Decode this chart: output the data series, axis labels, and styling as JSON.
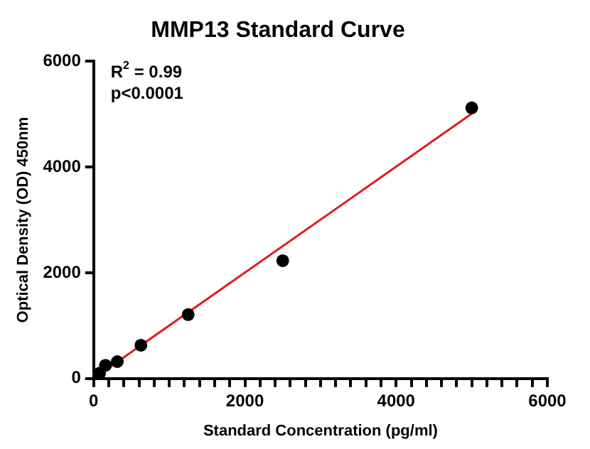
{
  "chart_data": {
    "type": "scatter",
    "title": "MMP13 Standard Curve",
    "xlabel": "Standard Concentration (pg/ml)",
    "ylabel": "Optical Density (OD) 450nm",
    "xlim": [
      0,
      6000
    ],
    "ylim": [
      0,
      6000
    ],
    "xticks": [
      0,
      {
        "value": 200,
        "label": null
      },
      {
        "value": 400,
        "label": null
      },
      {
        "value": 600,
        "label": null
      },
      {
        "value": 800,
        "label": null
      },
      {
        "value": 1000,
        "label": null
      },
      {
        "value": 1200,
        "label": null
      },
      {
        "value": 1400,
        "label": null
      },
      {
        "value": 1600,
        "label": null
      },
      {
        "value": 1800,
        "label": null
      },
      2000,
      {
        "value": 2200,
        "label": null
      },
      {
        "value": 2400,
        "label": null
      },
      {
        "value": 2600,
        "label": null
      },
      {
        "value": 2800,
        "label": null
      },
      {
        "value": 3000,
        "label": null
      },
      {
        "value": 3200,
        "label": null
      },
      {
        "value": 3400,
        "label": null
      },
      {
        "value": 3600,
        "label": null
      },
      {
        "value": 3800,
        "label": null
      },
      4000,
      {
        "value": 4200,
        "label": null
      },
      {
        "value": 4400,
        "label": null
      },
      {
        "value": 4600,
        "label": null
      },
      {
        "value": 4800,
        "label": null
      },
      {
        "value": 5000,
        "label": null
      },
      {
        "value": 5200,
        "label": null
      },
      {
        "value": 5400,
        "label": null
      },
      {
        "value": 5600,
        "label": null
      },
      {
        "value": 5800,
        "label": null
      },
      6000
    ],
    "yticks": [
      0,
      2000,
      4000,
      6000
    ],
    "grid": false,
    "legend": false,
    "marker": "circle",
    "annotations": [
      "R$^{2}$ = 0.99",
      "p<0.0001"
    ],
    "series": [
      {
        "type": "line",
        "color": "#e31a1c",
        "x": [
          39,
          5000
        ],
        "values": [
          40,
          5010
        ],
        "marker": "none"
      },
      {
        "color": "#000000",
        "x": [
          78,
          156,
          312.5,
          625,
          1250,
          2500,
          5000
        ],
        "values": [
          100,
          250,
          320,
          630,
          1210,
          2230,
          5120
        ]
      }
    ]
  }
}
